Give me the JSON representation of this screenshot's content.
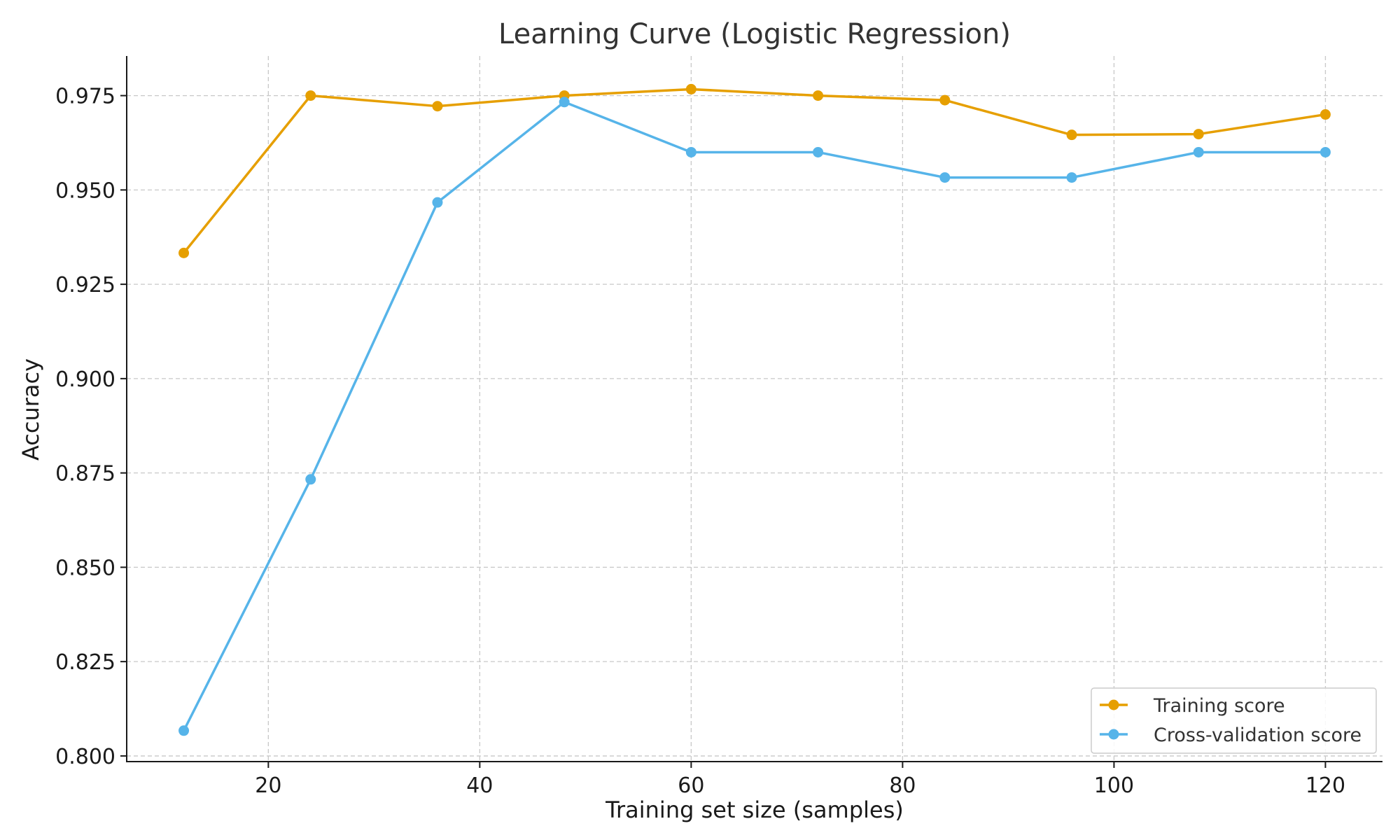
{
  "chart_data": {
    "type": "line",
    "title": "Learning Curve (Logistic Regression)",
    "xlabel": "Training set size (samples)",
    "ylabel": "Accuracy",
    "xlim": [
      6.6,
      125.4
    ],
    "ylim": [
      0.7985,
      0.9855
    ],
    "x_ticks": [
      20,
      40,
      60,
      80,
      100,
      120
    ],
    "x_tick_labels": [
      "20",
      "40",
      "60",
      "80",
      "100",
      "120"
    ],
    "y_ticks": [
      0.8,
      0.825,
      0.85,
      0.875,
      0.9,
      0.925,
      0.95,
      0.975
    ],
    "y_tick_labels": [
      "0.800",
      "0.825",
      "0.850",
      "0.875",
      "0.900",
      "0.925",
      "0.950",
      "0.975"
    ],
    "grid": true,
    "legend_position": "lower right",
    "x": [
      12,
      24,
      36,
      48,
      60,
      72,
      84,
      96,
      108,
      120
    ],
    "series": [
      {
        "name": "Training score",
        "color": "#E69F00",
        "values": [
          0.9333,
          0.975,
          0.9722,
          0.975,
          0.9767,
          0.975,
          0.9738,
          0.9646,
          0.9648,
          0.97
        ]
      },
      {
        "name": "Cross-validation score",
        "color": "#56B4E9",
        "values": [
          0.8067,
          0.8733,
          0.9467,
          0.9733,
          0.96,
          0.96,
          0.9533,
          0.9533,
          0.96,
          0.96
        ]
      }
    ]
  }
}
